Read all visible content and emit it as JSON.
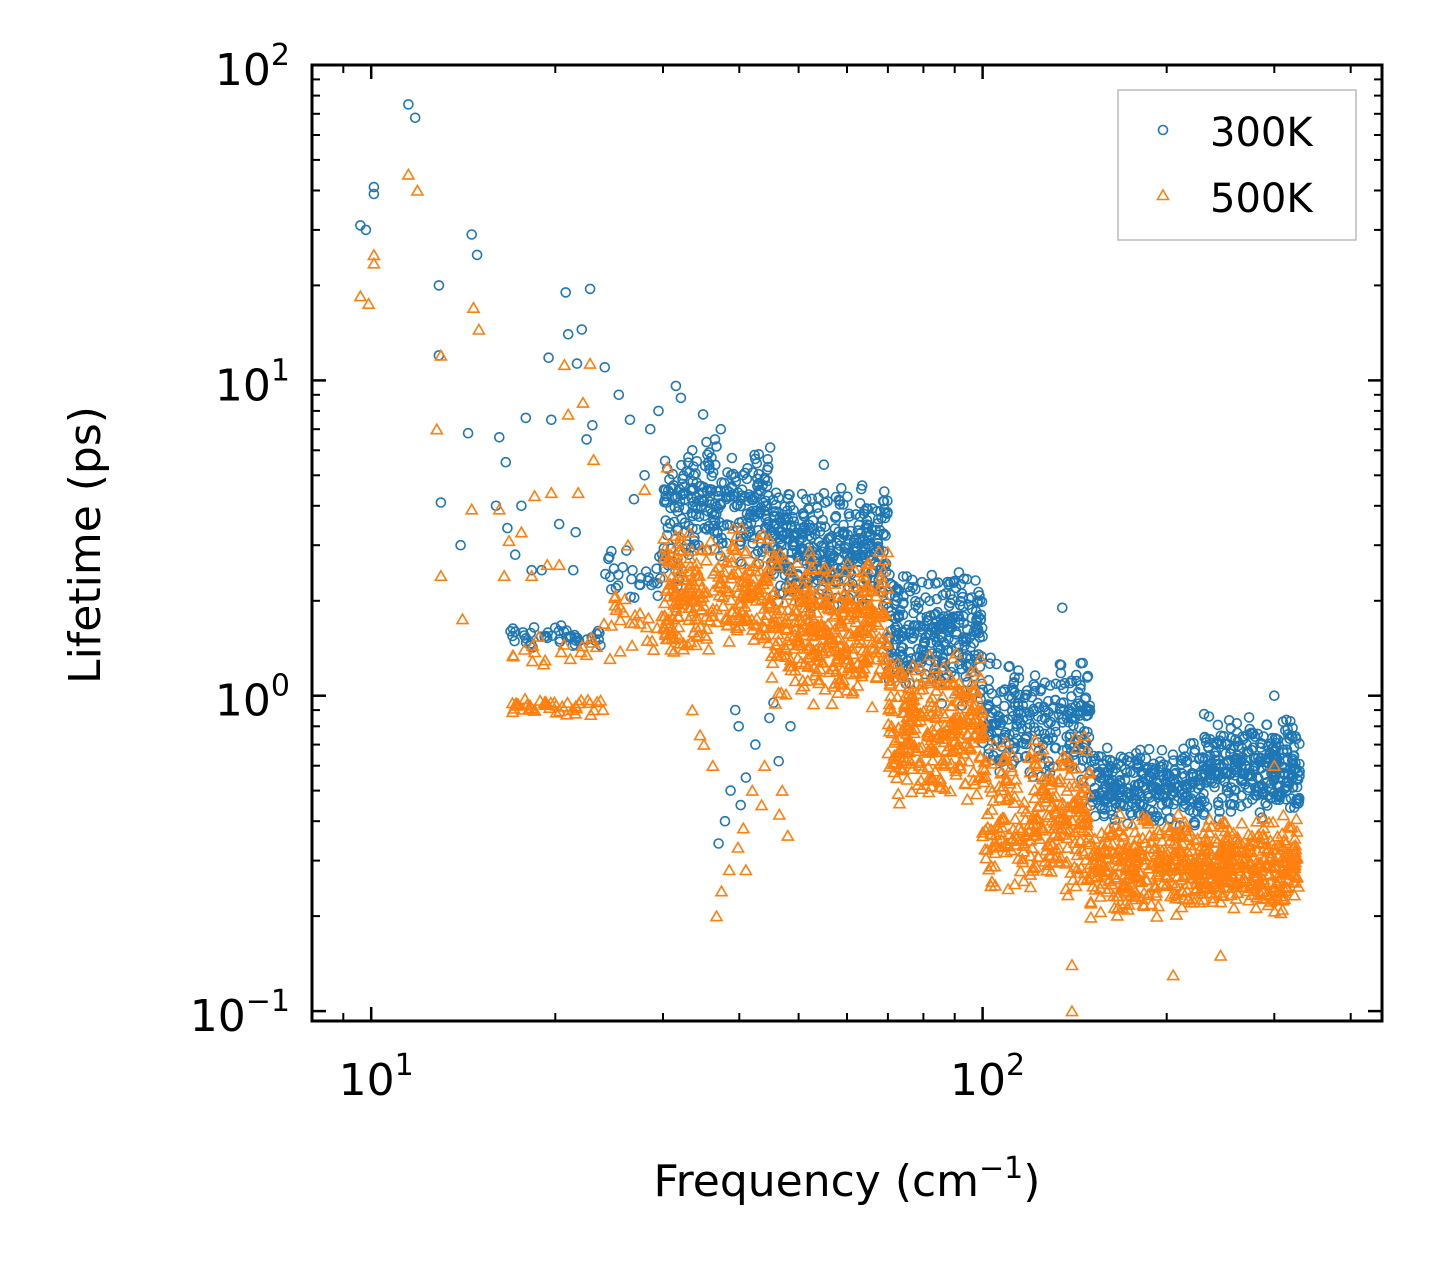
{
  "chart_data": {
    "type": "scatter",
    "title": "",
    "xlabel": "Frequency (cm",
    "xlabel_sup": "−1",
    "xlabel_end": ")",
    "ylabel": "Lifetime (ps)",
    "xscale": "log",
    "yscale": "log",
    "xlim": [
      8,
      450
    ],
    "ylim": [
      0.093,
      100
    ],
    "x_ticks": [
      {
        "value": 10,
        "base": "10",
        "exp": "1"
      },
      {
        "value": 100,
        "base": "10",
        "exp": "2"
      }
    ],
    "y_ticks": [
      {
        "value": 0.1,
        "base": "10",
        "exp": "−1"
      },
      {
        "value": 1,
        "base": "10",
        "exp": "0"
      },
      {
        "value": 10,
        "base": "10",
        "exp": "1"
      },
      {
        "value": 100,
        "base": "10",
        "exp": "2"
      }
    ],
    "legend_position": "top-right",
    "series": [
      {
        "name": "300K",
        "color": "#1f77b4",
        "marker": "circle-open",
        "points": [
          [
            9.6,
            31
          ],
          [
            9.8,
            30
          ],
          [
            10.1,
            41
          ],
          [
            10.1,
            39
          ],
          [
            11.5,
            75
          ],
          [
            11.8,
            68
          ],
          [
            12.9,
            20
          ],
          [
            12.9,
            12
          ],
          [
            13.0,
            4.1
          ],
          [
            14.0,
            3.0
          ],
          [
            14.4,
            6.8
          ],
          [
            14.6,
            29
          ],
          [
            14.9,
            25
          ],
          [
            16.0,
            4.0
          ],
          [
            16.2,
            6.6
          ],
          [
            16.6,
            5.5
          ],
          [
            16.7,
            3.4
          ],
          [
            16.9,
            1.6
          ],
          [
            17.2,
            2.8
          ],
          [
            17.6,
            4.0
          ],
          [
            17.9,
            7.6
          ],
          [
            18.3,
            2.5
          ],
          [
            19.0,
            2.5
          ],
          [
            19.5,
            11.8
          ],
          [
            19.7,
            7.5
          ],
          [
            20.3,
            3.5
          ],
          [
            20.8,
            19.0
          ],
          [
            21.0,
            14.0
          ],
          [
            21.4,
            2.5
          ],
          [
            21.6,
            3.3
          ],
          [
            21.7,
            11.3
          ],
          [
            22.1,
            14.5
          ],
          [
            22.5,
            6.5
          ],
          [
            22.8,
            19.5
          ],
          [
            23.0,
            7.2
          ],
          [
            24.1,
            11.0
          ],
          [
            25.4,
            9.0
          ],
          [
            26.5,
            7.5
          ],
          [
            26.9,
            4.2
          ],
          [
            28.0,
            5.0
          ],
          [
            28.6,
            7.0
          ],
          [
            29.5,
            8.0
          ],
          [
            31.5,
            9.6
          ],
          [
            32.1,
            8.8
          ],
          [
            33.5,
            6.0
          ],
          [
            34.9,
            7.8
          ],
          [
            36.5,
            6.5
          ],
          [
            37.3,
            7.0
          ],
          [
            38.7,
            0.5
          ],
          [
            39.4,
            0.9
          ],
          [
            39.9,
            0.8
          ],
          [
            40.2,
            0.45
          ],
          [
            41.0,
            0.55
          ],
          [
            42.5,
            0.7
          ],
          [
            44.8,
            0.85
          ],
          [
            46.4,
            0.62
          ],
          [
            37.0,
            0.34
          ],
          [
            37.9,
            0.4
          ],
          [
            45.5,
            0.95
          ],
          [
            48.5,
            0.8
          ],
          [
            55.0,
            5.4
          ],
          [
            99.0,
            2.0
          ],
          [
            135.0,
            1.9
          ],
          [
            300.0,
            1.0
          ]
        ],
        "bands": [
          {
            "x_from": 17,
            "x_to": 24,
            "y_min": 1.4,
            "y_max": 1.7,
            "n": 45
          },
          {
            "x_from": 24,
            "x_to": 32,
            "y_min": 2.0,
            "y_max": 3.0,
            "n": 40
          },
          {
            "x_from": 30,
            "x_to": 45,
            "y_min": 2.6,
            "y_max": 6.5,
            "n": 260
          },
          {
            "x_from": 45,
            "x_to": 70,
            "y_min": 1.8,
            "y_max": 4.8,
            "n": 380
          },
          {
            "x_from": 70,
            "x_to": 100,
            "y_min": 0.9,
            "y_max": 2.6,
            "n": 300
          },
          {
            "x_from": 100,
            "x_to": 150,
            "y_min": 0.5,
            "y_max": 1.4,
            "n": 260
          },
          {
            "x_from": 150,
            "x_to": 230,
            "y_min": 0.38,
            "y_max": 0.72,
            "n": 300
          },
          {
            "x_from": 230,
            "x_to": 330,
            "y_min": 0.4,
            "y_max": 0.9,
            "n": 320
          }
        ]
      },
      {
        "name": "500K",
        "color": "#ff7f0e",
        "marker": "triangle-open",
        "points": [
          [
            9.6,
            18.5
          ],
          [
            9.9,
            17.5
          ],
          [
            10.1,
            25
          ],
          [
            10.1,
            23.5
          ],
          [
            11.5,
            45
          ],
          [
            11.9,
            40
          ],
          [
            12.8,
            7.0
          ],
          [
            13.0,
            12
          ],
          [
            13.0,
            2.4
          ],
          [
            14.1,
            1.75
          ],
          [
            14.6,
            3.9
          ],
          [
            14.7,
            17
          ],
          [
            15.0,
            14.5
          ],
          [
            16.2,
            3.9
          ],
          [
            16.5,
            2.4
          ],
          [
            16.8,
            3.1
          ],
          [
            17.6,
            3.3
          ],
          [
            18.3,
            2.4
          ],
          [
            18.5,
            4.3
          ],
          [
            19.4,
            2.6
          ],
          [
            19.7,
            4.4
          ],
          [
            20.3,
            2.6
          ],
          [
            20.7,
            11.2
          ],
          [
            21.0,
            7.8
          ],
          [
            21.8,
            4.4
          ],
          [
            22.2,
            8.5
          ],
          [
            22.8,
            11.3
          ],
          [
            23.1,
            5.6
          ],
          [
            26.3,
            3.0
          ],
          [
            27.0,
            1.8
          ],
          [
            28.0,
            4.5
          ],
          [
            30.5,
            5.3
          ],
          [
            33.5,
            0.9
          ],
          [
            35.0,
            0.7
          ],
          [
            36.7,
            0.2
          ],
          [
            37.4,
            0.24
          ],
          [
            38.5,
            0.28
          ],
          [
            39.8,
            0.33
          ],
          [
            40.6,
            0.38
          ],
          [
            42.0,
            0.5
          ],
          [
            44.0,
            0.6
          ],
          [
            46.5,
            0.42
          ],
          [
            48.0,
            0.36
          ],
          [
            41.0,
            0.28
          ],
          [
            34.5,
            0.75
          ],
          [
            36.2,
            0.6
          ],
          [
            43.5,
            0.45
          ],
          [
            47.0,
            0.5
          ],
          [
            140.0,
            0.1
          ],
          [
            140.0,
            0.14
          ],
          [
            205.0,
            0.13
          ],
          [
            245.0,
            0.15
          ],
          [
            300.0,
            0.6
          ]
        ],
        "bands": [
          {
            "x_from": 17,
            "x_to": 24,
            "y_min": 0.86,
            "y_max": 1.0,
            "n": 45
          },
          {
            "x_from": 17,
            "x_to": 24,
            "y_min": 1.2,
            "y_max": 1.7,
            "n": 18
          },
          {
            "x_from": 24,
            "x_to": 32,
            "y_min": 1.2,
            "y_max": 2.2,
            "n": 40
          },
          {
            "x_from": 30,
            "x_to": 45,
            "y_min": 1.3,
            "y_max": 3.6,
            "n": 260
          },
          {
            "x_from": 45,
            "x_to": 70,
            "y_min": 0.9,
            "y_max": 3.0,
            "n": 380
          },
          {
            "x_from": 70,
            "x_to": 100,
            "y_min": 0.45,
            "y_max": 1.4,
            "n": 300
          },
          {
            "x_from": 100,
            "x_to": 150,
            "y_min": 0.22,
            "y_max": 0.8,
            "n": 300
          },
          {
            "x_from": 150,
            "x_to": 230,
            "y_min": 0.19,
            "y_max": 0.45,
            "n": 320
          },
          {
            "x_from": 230,
            "x_to": 330,
            "y_min": 0.2,
            "y_max": 0.42,
            "n": 320
          }
        ]
      }
    ]
  }
}
